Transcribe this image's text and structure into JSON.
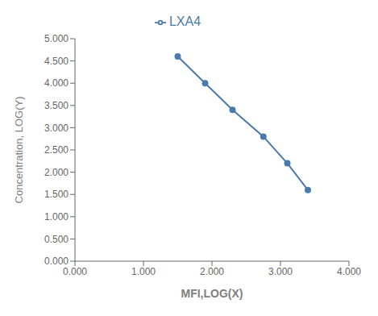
{
  "chart_data": {
    "type": "line",
    "x": [
      1.5,
      1.9,
      2.3,
      2.75,
      3.1,
      3.4
    ],
    "series": [
      {
        "name": "LXA4",
        "color": "#4a7aab",
        "marker": "circle",
        "values": [
          4.6,
          4.0,
          3.4,
          2.8,
          2.2,
          1.6
        ]
      }
    ],
    "xlabel": "MFI,LOG(X)",
    "ylabel": "Concentration, LOG(Y)",
    "xlim": [
      0.0,
      4.0
    ],
    "ylim": [
      0.0,
      5.0
    ],
    "xticks": [
      {
        "value": 0.0,
        "label": "0.000"
      },
      {
        "value": 1.0,
        "label": "1.000"
      },
      {
        "value": 2.0,
        "label": "2.000"
      },
      {
        "value": 3.0,
        "label": "3.000"
      },
      {
        "value": 4.0,
        "label": "4.000"
      }
    ],
    "yticks": [
      {
        "value": 0.0,
        "label": "0.000"
      },
      {
        "value": 0.5,
        "label": "0.500"
      },
      {
        "value": 1.0,
        "label": "1.000"
      },
      {
        "value": 1.5,
        "label": "1.500"
      },
      {
        "value": 2.0,
        "label": "2.000"
      },
      {
        "value": 2.5,
        "label": "2.500"
      },
      {
        "value": 3.0,
        "label": "3.000"
      },
      {
        "value": 3.5,
        "label": "3.500"
      },
      {
        "value": 4.0,
        "label": "4.000"
      },
      {
        "value": 4.5,
        "label": "4.500"
      },
      {
        "value": 5.0,
        "label": "5.000"
      }
    ],
    "legend": "top"
  }
}
